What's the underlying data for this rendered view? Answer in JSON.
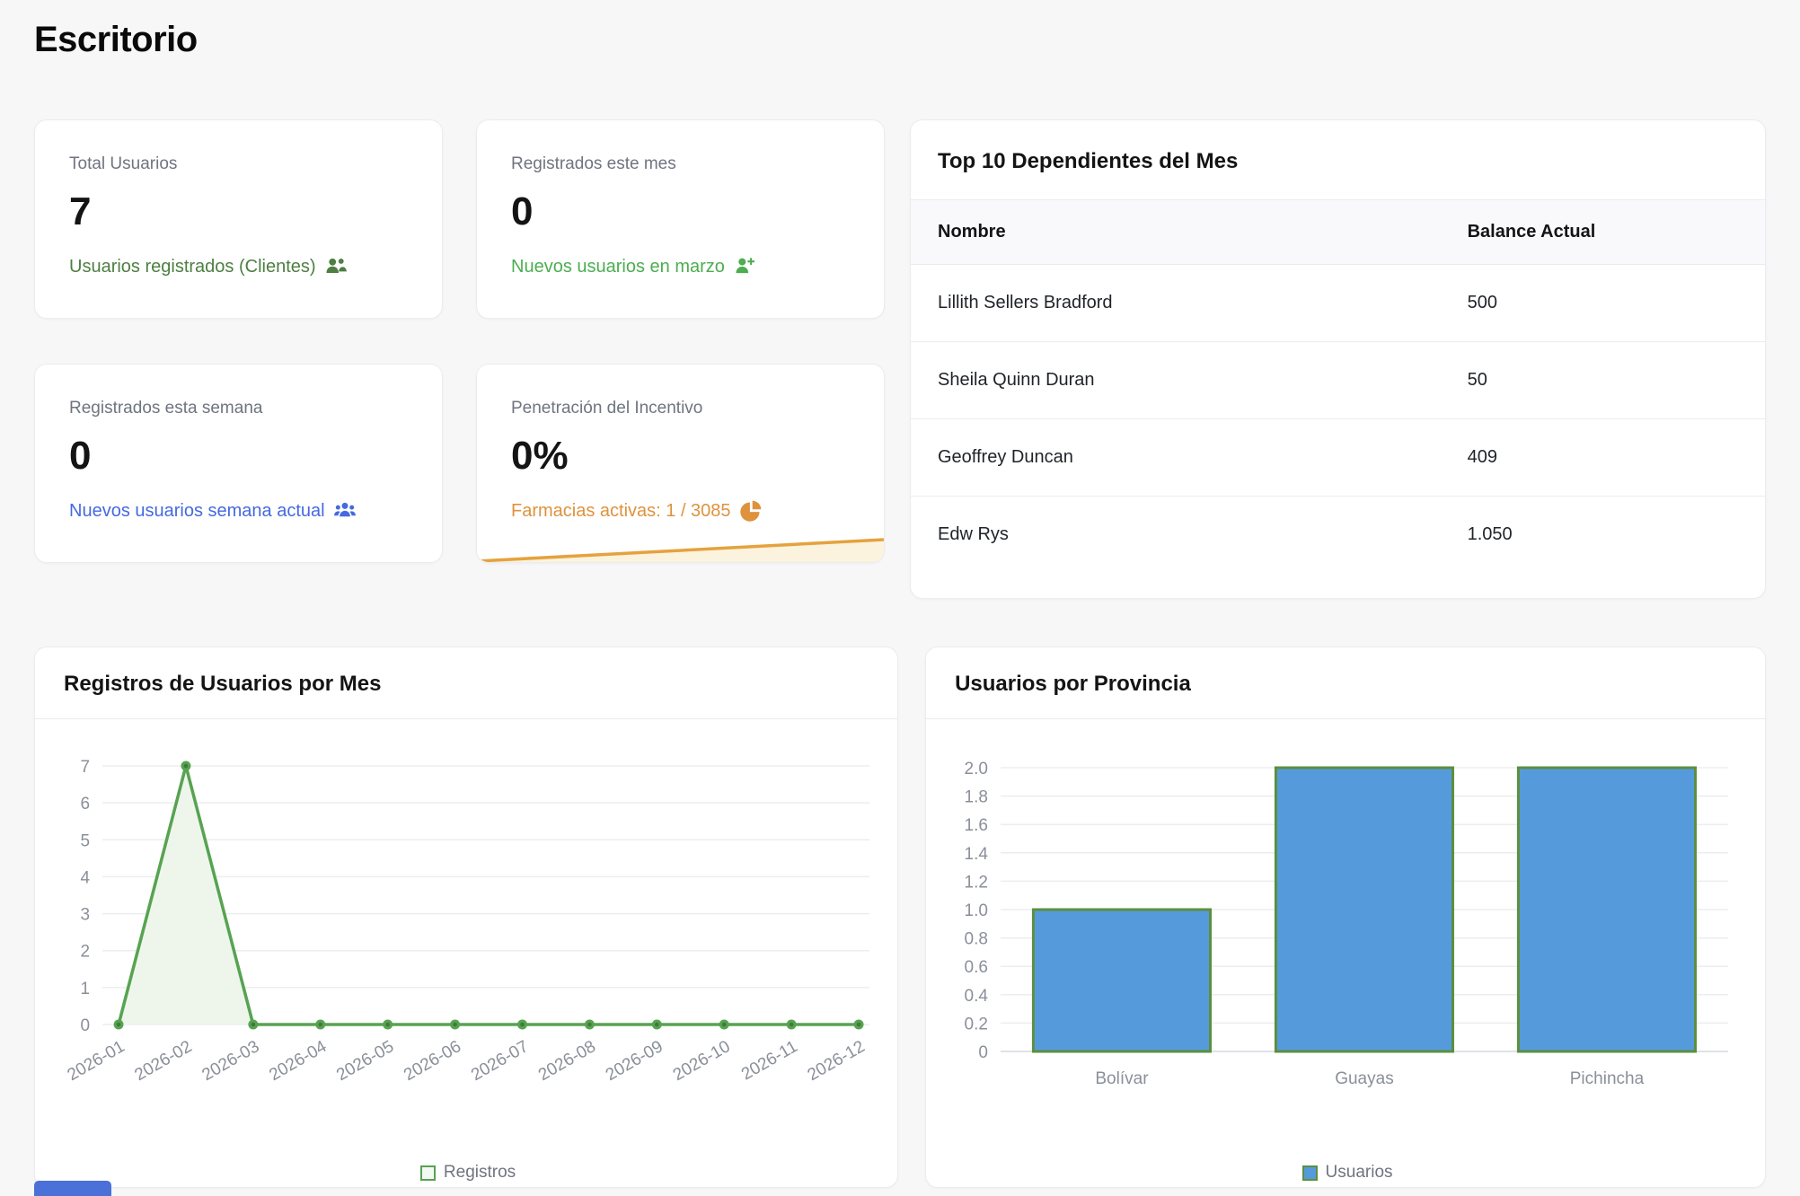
{
  "page": {
    "title": "Escritorio"
  },
  "stats": [
    {
      "label": "Total Usuarios",
      "value": "7",
      "subtext": "Usuarios registrados (Clientes)",
      "icon": "users-icon",
      "accent": "#4e7f42"
    },
    {
      "label": "Registrados este mes",
      "value": "0",
      "subtext": "Nuevos usuarios en marzo",
      "icon": "user-plus-icon",
      "accent": "#4cae50"
    },
    {
      "label": "Registrados esta semana",
      "value": "0",
      "subtext": "Nuevos usuarios semana actual",
      "icon": "users-group-icon",
      "accent": "#4569e0"
    },
    {
      "label": "Penetración del Incentivo",
      "value": "0%",
      "subtext": "Farmacias activas: 1 / 3085",
      "icon": "pie-chart-icon",
      "accent": "#df923d",
      "sparkline_color": "#e5a23e",
      "sparkline_fill": "#fbf3de"
    }
  ],
  "top_table": {
    "title": "Top 10 Dependientes del Mes",
    "columns": [
      "Nombre",
      "Balance Actual"
    ],
    "rows": [
      [
        "Lillith Sellers Bradford",
        "500"
      ],
      [
        "Sheila Quinn Duran",
        "50"
      ],
      [
        "Geoffrey Duncan",
        "409"
      ],
      [
        "Edw Rys",
        "1.050"
      ]
    ]
  },
  "chart_data": [
    {
      "type": "area",
      "title": "Registros de Usuarios por Mes",
      "categories": [
        "2026-01",
        "2026-02",
        "2026-03",
        "2026-04",
        "2026-05",
        "2026-06",
        "2026-07",
        "2026-08",
        "2026-09",
        "2026-10",
        "2026-11",
        "2026-12"
      ],
      "series": [
        {
          "name": "Registros",
          "values": [
            0,
            7,
            0,
            0,
            0,
            0,
            0,
            0,
            0,
            0,
            0,
            0
          ]
        }
      ],
      "xlabel": "",
      "ylabel": "",
      "ylim": [
        0,
        7
      ],
      "yticks": [
        0,
        1,
        2,
        3,
        4,
        5,
        6,
        7
      ],
      "grid": true,
      "legend_position": "bottom",
      "line_color": "#57a351",
      "point_inner_color": "#3f7a39",
      "area_color": "#eef6ec",
      "legend_swatch_fill": "#f3faf2",
      "axis_text_color": "#8a8f99"
    },
    {
      "type": "bar",
      "title": "Usuarios por Provincia",
      "categories": [
        "Bolívar",
        "Guayas",
        "Pichincha"
      ],
      "series": [
        {
          "name": "Usuarios",
          "values": [
            1,
            2,
            2
          ]
        }
      ],
      "xlabel": "",
      "ylabel": "",
      "ylim": [
        0,
        2
      ],
      "ytick_step": 0.2,
      "grid": true,
      "legend_position": "bottom",
      "bar_color": "#559bdb",
      "bar_border_color": "#5c8f3e",
      "axis_text_color": "#8a8f99"
    }
  ],
  "partial_widget": {
    "color": "#4b70d8"
  }
}
